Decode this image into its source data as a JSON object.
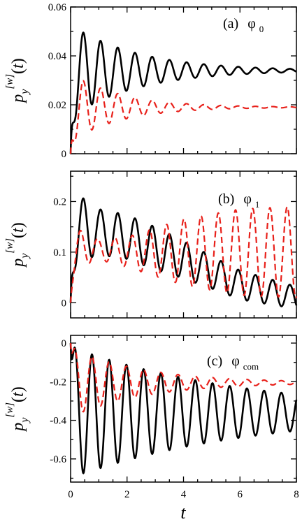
{
  "figure": {
    "x_axis_label": "t",
    "x_ticks": [
      "0",
      "2",
      "4",
      "6",
      "8"
    ]
  },
  "colors": {
    "solid_series": "#000000",
    "dashed_series": "#e8211b"
  },
  "chart_data": [
    {
      "type": "line",
      "panel_label": "(a)",
      "state_symbol": "φ",
      "state_subscript": "0",
      "ylabel": "p_y^[w](t)",
      "xlabel": "",
      "xlim": [
        0,
        8
      ],
      "ylim": [
        0,
        0.06
      ],
      "y_ticks": [
        "0",
        "0.02",
        "0.04",
        "0.06"
      ],
      "y_tick_values": [
        0,
        0.02,
        0.04,
        0.06
      ],
      "grid": false,
      "series": [
        {
          "style": "solid",
          "model": {
            "start": 0,
            "base": 0.034,
            "amp": 0.019,
            "decay": 0.42,
            "period": 0.61,
            "phase": 0.3,
            "phase_growth": 0
          }
        },
        {
          "style": "dashed",
          "model": {
            "start": 0,
            "base": 0.019,
            "amp": 0.014,
            "decay": 0.55,
            "period": 0.61,
            "phase": 0.3,
            "phase_growth": 0
          }
        }
      ]
    },
    {
      "type": "line",
      "panel_label": "(b)",
      "state_symbol": "φ",
      "state_subscript": "1",
      "ylabel": "p_y^[w](t)",
      "xlabel": "",
      "xlim": [
        0,
        8
      ],
      "ylim": [
        -0.03,
        0.26
      ],
      "y_ticks": [
        "0",
        "0.1",
        "0.2"
      ],
      "y_tick_values": [
        0,
        0.1,
        0.2
      ],
      "grid": false,
      "series": [
        {
          "style": "solid",
          "model": {
            "start": 0,
            "base_points": [
              [
                0,
                0.15
              ],
              [
                2,
                0.13
              ],
              [
                4,
                0.085
              ],
              [
                6,
                0.035
              ],
              [
                8,
                0.01
              ]
            ],
            "amp_points": [
              [
                0,
                0.075
              ],
              [
                1,
                0.045
              ],
              [
                3,
                0.042
              ],
              [
                5,
                0.032
              ],
              [
                8,
                0.022
              ]
            ],
            "period": 0.61,
            "phase": 0.3,
            "phase_growth": 0
          }
        },
        {
          "style": "dashed",
          "model": {
            "start": 0,
            "base_points": [
              [
                0,
                0.11
              ],
              [
                2,
                0.1
              ],
              [
                4,
                0.1
              ],
              [
                6,
                0.1
              ],
              [
                8,
                0.1
              ]
            ],
            "amp_points": [
              [
                0,
                0.045
              ],
              [
                1,
                0.02
              ],
              [
                2,
                0.03
              ],
              [
                4,
                0.065
              ],
              [
                6,
                0.085
              ],
              [
                8,
                0.09
              ]
            ],
            "period": 0.61,
            "phase": 0.2,
            "phase_growth": 0
          }
        }
      ]
    },
    {
      "type": "line",
      "panel_label": "(c)",
      "state_symbol": "φ",
      "state_subscript": "com",
      "ylabel": "p_y^[w](t)",
      "xlabel": "t",
      "xlim": [
        0,
        8
      ],
      "ylim": [
        -0.72,
        0.04
      ],
      "y_ticks": [
        "-0.6",
        "-0.4",
        "-0.2",
        "0"
      ],
      "y_tick_values": [
        -0.6,
        -0.4,
        -0.2,
        0
      ],
      "grid": false,
      "series": [
        {
          "style": "solid",
          "model": {
            "start": 0,
            "base": -0.36,
            "amp": 0.34,
            "decay": 0.16,
            "period": 0.61,
            "phase": 0.3,
            "phase_growth": 0,
            "sign": -1
          }
        },
        {
          "style": "dashed",
          "model": {
            "start": 0,
            "base": -0.205,
            "amp": 0.18,
            "decay": 0.38,
            "period": 0.61,
            "phase": 0.3,
            "phase_growth": 0,
            "sign": -1
          }
        }
      ]
    }
  ]
}
